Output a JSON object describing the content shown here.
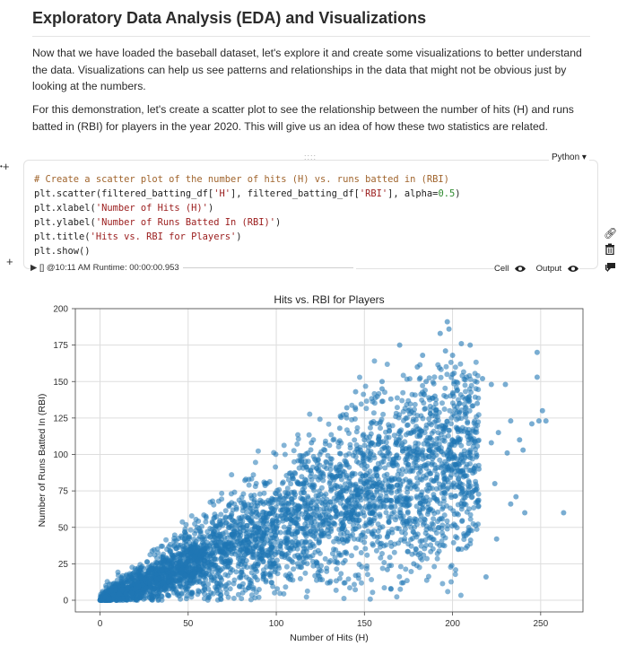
{
  "markdown": {
    "title": "Exploratory Data Analysis (EDA) and Visualizations",
    "para1_line1": "Now that we have loaded the baseball dataset, let's explore it and create some visualizations to better understand",
    "para1_line2": "the data. Visualizations can help us see patterns and relationships in the data that might not be obvious just by",
    "para1_line3": "looking at the numbers.",
    "para2_line1": "For this demonstration, let's create a scatter plot to see the relationship between the number of hits (H) and runs",
    "para2_line2": "batted in (RBI) for players in the year 2020. This will give us an idea of how these two statistics are related."
  },
  "cell": {
    "handle": "::::",
    "language": "Python ▾",
    "code_comment": "# Create a scatter plot of the number of hits (H) vs. runs batted in (RBI)",
    "code_l2_a": "plt.scatter(filtered_batting_df[",
    "code_l2_s1": "'H'",
    "code_l2_b": "], filtered_batting_df[",
    "code_l2_s2": "'RBI'",
    "code_l2_c": "], alpha=",
    "code_l2_n": "0.5",
    "code_l2_d": ")",
    "code_l3_a": "plt.xlabel(",
    "code_l3_s": "'Number of Hits (H)'",
    "code_l3_b": ")",
    "code_l4_a": "plt.ylabel(",
    "code_l4_s": "'Number of Runs Batted In (RBI)'",
    "code_l4_b": ")",
    "code_l5_a": "plt.title(",
    "code_l5_s": "'Hits vs. RBI for Players'",
    "code_l5_b": ")",
    "code_l6": "plt.show()",
    "status": "▶ [] @10:11 AM Runtime: 00:00:00.953",
    "cell_toggle": "Cell",
    "output_toggle": "Output",
    "add_above": "+",
    "add_below": "+"
  },
  "icons": {
    "play": "play-icon",
    "eye": "eye-icon",
    "link": "link-icon",
    "trash": "trash-icon",
    "comment": "comment-icon"
  },
  "colors": {
    "point": "#1f77b4",
    "grid": "#dddddd"
  },
  "chart_data": {
    "type": "scatter",
    "title": "Hits vs. RBI for Players",
    "xlabel": "Number of Hits (H)",
    "ylabel": "Number of Runs Batted In (RBI)",
    "xlim": [
      -14,
      274
    ],
    "ylim": [
      -8,
      200
    ],
    "xticks": [
      0,
      50,
      100,
      150,
      200,
      250
    ],
    "yticks": [
      0,
      25,
      50,
      75,
      100,
      125,
      150,
      175,
      200
    ],
    "alpha": 0.5,
    "grid": true,
    "outliers": [
      [
        197,
        191
      ],
      [
        193,
        183
      ],
      [
        198,
        186
      ],
      [
        205,
        176
      ],
      [
        210,
        175
      ],
      [
        196,
        171
      ],
      [
        183,
        168
      ],
      [
        200,
        168
      ],
      [
        248,
        170
      ],
      [
        230,
        148
      ],
      [
        222,
        148
      ],
      [
        217,
        152
      ],
      [
        248,
        153
      ],
      [
        251,
        130
      ],
      [
        253,
        123
      ],
      [
        249,
        123
      ],
      [
        245,
        121
      ],
      [
        233,
        123
      ],
      [
        263,
        60
      ],
      [
        241,
        60
      ],
      [
        233,
        66
      ],
      [
        236,
        71
      ],
      [
        224,
        80
      ],
      [
        215,
        90
      ],
      [
        240,
        103
      ],
      [
        226,
        115
      ],
      [
        238,
        110
      ],
      [
        231,
        101
      ],
      [
        222,
        108
      ],
      [
        190,
        140
      ],
      [
        185,
        150
      ],
      [
        160,
        145
      ],
      [
        145,
        143
      ],
      [
        150,
        110
      ],
      [
        180,
        160
      ],
      [
        170,
        175
      ],
      [
        200,
        155
      ],
      [
        214,
        135
      ],
      [
        205,
        100
      ],
      [
        211,
        74
      ],
      [
        225,
        42
      ],
      [
        219,
        16
      ],
      [
        178,
        25
      ],
      [
        172,
        12
      ],
      [
        165,
        8
      ],
      [
        145,
        17
      ],
      [
        163,
        21
      ],
      [
        210,
        48
      ],
      [
        160,
        150
      ],
      [
        165,
        138
      ],
      [
        140,
        132
      ],
      [
        136,
        118
      ],
      [
        120,
        108
      ],
      [
        175,
        130
      ]
    ]
  }
}
